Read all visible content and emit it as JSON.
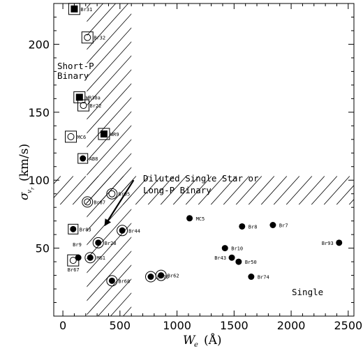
{
  "chart_data": {
    "type": "scatter",
    "title": "",
    "xlabel": "W",
    "xlabel_sub": "e",
    "xlabel_unit": "(Å)",
    "ylabel": "σ",
    "ylabel_sub": "v",
    "ylabel_subsub": "r",
    "ylabel_unit": "(km/s)",
    "xlim": [
      -80,
      2550
    ],
    "ylim": [
      0,
      230
    ],
    "x_ticks": [
      0,
      500,
      1000,
      1500,
      2000,
      2500
    ],
    "y_ticks": [
      50,
      100,
      150,
      200
    ],
    "grid": false,
    "hatched_regions": [
      {
        "name": "vertical band",
        "x_range": [
          210,
          600
        ],
        "y_range": [
          0,
          230
        ]
      },
      {
        "name": "horizontal band",
        "x_range": [
          -80,
          2550
        ],
        "y_range": [
          82,
          103
        ]
      }
    ],
    "annotations": {
      "short_p": [
        "Short-P",
        "Binary"
      ],
      "diluted": [
        "Diluted Single Star or",
        "Long-P Binary"
      ],
      "single": "Single"
    },
    "arrow": {
      "from": [
        620,
        100
      ],
      "to": [
        370,
        67
      ]
    },
    "points": [
      {
        "label": "Br31",
        "x": 100,
        "y": 226,
        "fill": true,
        "shape": "square",
        "ring": true
      },
      {
        "label": "Br32",
        "x": 215,
        "y": 205,
        "fill": false,
        "shape": "square",
        "ring": true
      },
      {
        "label": "WR30a",
        "x": 145,
        "y": 161,
        "fill": true,
        "shape": "square",
        "ring": true
      },
      {
        "label": "Br22",
        "x": 180,
        "y": 155,
        "fill": false,
        "shape": "square",
        "ring": true
      },
      {
        "label": "WR9",
        "x": 360,
        "y": 134,
        "fill": true,
        "shape": "square",
        "ring": true
      },
      {
        "label": "MC6",
        "x": 70,
        "y": 132,
        "fill": false,
        "shape": "square",
        "ring": true
      },
      {
        "label": "AB8",
        "x": 175,
        "y": 116,
        "fill": true,
        "shape": "square",
        "ring": false
      },
      {
        "label": "Br95",
        "x": 430,
        "y": 90,
        "fill": false,
        "shape": "circle",
        "ring": true
      },
      {
        "label": "Br87",
        "x": 215,
        "y": 84,
        "fill": false,
        "shape": "circle",
        "ring": true
      },
      {
        "label": "Br83",
        "x": 90,
        "y": 64,
        "fill": true,
        "shape": "square",
        "ring": false
      },
      {
        "label": "Br44",
        "x": 520,
        "y": 63,
        "fill": true,
        "shape": "circle",
        "ring": true
      },
      {
        "label": "Br28",
        "x": 310,
        "y": 54,
        "fill": true,
        "shape": "circle",
        "ring": true
      },
      {
        "label": "Br9",
        "x": 135,
        "y": 43,
        "fill": true,
        "shape": "circle",
        "ring": false
      },
      {
        "label": "MG1",
        "x": 240,
        "y": 43,
        "fill": true,
        "shape": "circle",
        "ring": true
      },
      {
        "label": "Br67",
        "x": 90,
        "y": 41,
        "fill": false,
        "shape": "square",
        "ring": true
      },
      {
        "label": "Br68",
        "x": 430,
        "y": 26,
        "fill": true,
        "shape": "circle",
        "ring": true
      },
      {
        "label": "Br70",
        "x": 770,
        "y": 29,
        "fill": true,
        "shape": "circle",
        "ring": true
      },
      {
        "label": "Br62",
        "x": 860,
        "y": 30,
        "fill": true,
        "shape": "circle",
        "ring": true
      },
      {
        "label": "MC5",
        "x": 1110,
        "y": 72,
        "fill": true,
        "shape": "circle",
        "ring": false
      },
      {
        "label": "Br8",
        "x": 1570,
        "y": 66,
        "fill": true,
        "shape": "circle",
        "ring": false
      },
      {
        "label": "Br7",
        "x": 1840,
        "y": 67,
        "fill": true,
        "shape": "circle",
        "ring": false
      },
      {
        "label": "Br93",
        "x": 2420,
        "y": 54,
        "fill": true,
        "shape": "circle",
        "ring": false
      },
      {
        "label": "Br10",
        "x": 1420,
        "y": 50,
        "fill": true,
        "shape": "circle",
        "ring": false
      },
      {
        "label": "Br43",
        "x": 1480,
        "y": 43,
        "fill": true,
        "shape": "circle",
        "ring": false
      },
      {
        "label": "Br50",
        "x": 1540,
        "y": 40,
        "fill": true,
        "shape": "circle",
        "ring": false
      },
      {
        "label": "Br74",
        "x": 1650,
        "y": 29,
        "fill": true,
        "shape": "circle",
        "ring": false
      }
    ]
  }
}
